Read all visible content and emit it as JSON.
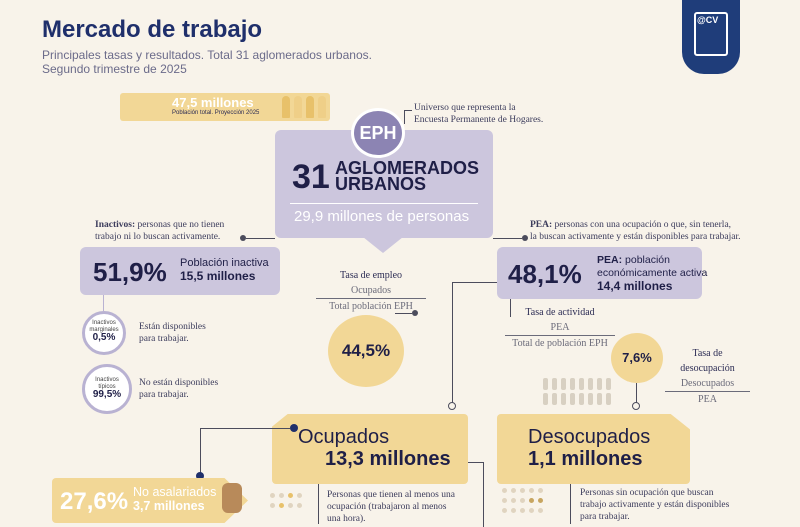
{
  "header": {
    "title": "Mercado de trabajo",
    "subtitle_line1": "Principales tasas y resultados. Total 31 aglomerados urbanos.",
    "subtitle_line2": "Segundo trimestre de 2025",
    "logo_text": "@CV"
  },
  "population": {
    "value": "47,5 millones",
    "caption": "Población total. Proyección 2025"
  },
  "eph": {
    "badge": "EPH",
    "note_line1": "Universo que representa la",
    "note_line2": "Encuesta Permanente de Hogares.",
    "number": "31",
    "aglo_line1": "AGLOMERADOS",
    "aglo_line2": "URBANOS",
    "people": "29,9 millones de personas"
  },
  "inactivos": {
    "note_bold": "Inactivos:",
    "note_line1": " personas que no tienen",
    "note_line2": "trabajo ni lo buscan activamente.",
    "pct": "51,9%",
    "label1": "Población inactiva",
    "label2": "15,5 millones",
    "marginales_label1": "Inactivos",
    "marginales_label2": "marginales",
    "marginales_pct": "0,5%",
    "marginales_desc1": "Están disponibles",
    "marginales_desc2": "para trabajar.",
    "tipicos_label1": "Inactivos",
    "tipicos_label2": "típicos",
    "tipicos_pct": "99,5%",
    "tipicos_desc1": "No están disponibles",
    "tipicos_desc2": "para trabajar."
  },
  "pea": {
    "note_bold": "PEA:",
    "note_line1": " personas con una ocupación o que, sin tenerla,",
    "note_line2": "la buscan activamente y están disponibles para trabajar.",
    "pct": "48,1%",
    "label_bold": "PEA:",
    "label1": " población",
    "label2": "económicamente activa",
    "label3": "14,4 millones"
  },
  "empleo": {
    "title": "Tasa de empleo",
    "numerator": "Ocupados",
    "denominator": "Total población EPH",
    "value": "44,5%"
  },
  "actividad": {
    "title": "Tasa de actividad",
    "numerator": "PEA",
    "denominator": "Total de población EPH"
  },
  "desocupacion": {
    "value": "7,6%",
    "title": "Tasa de desocupación",
    "numerator": "Desocupados",
    "denominator": "PEA"
  },
  "ocupados": {
    "title": "Ocupados",
    "value": "13,3 millones",
    "desc_line1": "Personas que tienen al menos una",
    "desc_line2": "ocupación (trabajaron al menos",
    "desc_line3": "una hora)."
  },
  "desocupados": {
    "title": "Desocupados",
    "value": "1,1 millones",
    "desc_line1": "Personas sin ocupación que buscan",
    "desc_line2": "trabajo activamente y están disponibles",
    "desc_line3": "para trabajar."
  },
  "no_asalariados": {
    "pct": "27,6%",
    "label1": "No asalariados",
    "label2": "3,7 millones"
  },
  "colors": {
    "navy": "#1f2f6b",
    "lilac": "#ccc6dd",
    "yellow": "#f2d796",
    "background": "#f8f3ea"
  }
}
